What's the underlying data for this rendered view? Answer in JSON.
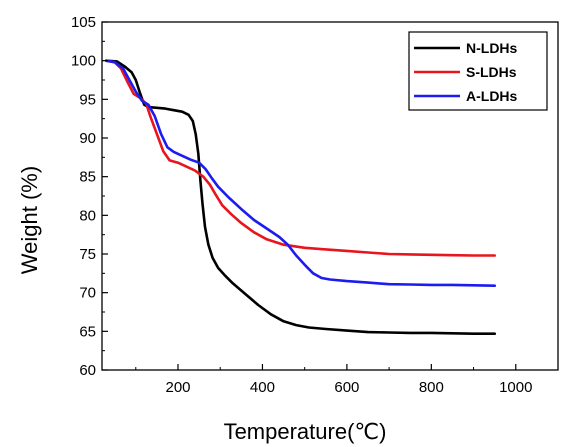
{
  "chart_data": {
    "type": "line",
    "title": "",
    "xlabel": "Temperature(℃)",
    "ylabel": "Weight (%)",
    "xlim": [
      20,
      1100
    ],
    "ylim": [
      60,
      105
    ],
    "xticks": [
      200,
      400,
      600,
      800,
      1000
    ],
    "yticks": [
      60,
      65,
      70,
      75,
      80,
      85,
      90,
      95,
      100,
      105
    ],
    "grid": false,
    "legend_position": "top-right",
    "series": [
      {
        "name": "N-LDHs",
        "color": "#000000",
        "points": [
          [
            30,
            100
          ],
          [
            55,
            99.9
          ],
          [
            75,
            99.2
          ],
          [
            90,
            98.5
          ],
          [
            100,
            97.5
          ],
          [
            110,
            95.8
          ],
          [
            120,
            94.3
          ],
          [
            130,
            94.0
          ],
          [
            150,
            93.9
          ],
          [
            170,
            93.8
          ],
          [
            190,
            93.6
          ],
          [
            210,
            93.4
          ],
          [
            225,
            93.0
          ],
          [
            235,
            92.2
          ],
          [
            242,
            90.5
          ],
          [
            248,
            88.0
          ],
          [
            253,
            84.5
          ],
          [
            258,
            81.5
          ],
          [
            264,
            78.5
          ],
          [
            272,
            76.2
          ],
          [
            282,
            74.5
          ],
          [
            295,
            73.2
          ],
          [
            310,
            72.3
          ],
          [
            330,
            71.2
          ],
          [
            360,
            69.8
          ],
          [
            390,
            68.4
          ],
          [
            420,
            67.2
          ],
          [
            450,
            66.3
          ],
          [
            480,
            65.8
          ],
          [
            510,
            65.5
          ],
          [
            550,
            65.3
          ],
          [
            600,
            65.1
          ],
          [
            650,
            64.9
          ],
          [
            700,
            64.85
          ],
          [
            750,
            64.8
          ],
          [
            800,
            64.8
          ],
          [
            850,
            64.75
          ],
          [
            900,
            64.7
          ],
          [
            950,
            64.7
          ]
        ]
      },
      {
        "name": "S-LDHs",
        "color": "#e8141e",
        "points": [
          [
            30,
            100
          ],
          [
            50,
            99.8
          ],
          [
            65,
            99
          ],
          [
            80,
            97.3
          ],
          [
            95,
            95.7
          ],
          [
            110,
            95.2
          ],
          [
            125,
            94.4
          ],
          [
            135,
            92.7
          ],
          [
            150,
            90.5
          ],
          [
            165,
            88.3
          ],
          [
            180,
            87.1
          ],
          [
            200,
            86.8
          ],
          [
            220,
            86.3
          ],
          [
            240,
            85.8
          ],
          [
            260,
            85.0
          ],
          [
            275,
            84.0
          ],
          [
            290,
            82.6
          ],
          [
            305,
            81.3
          ],
          [
            325,
            80.2
          ],
          [
            350,
            79.0
          ],
          [
            380,
            77.8
          ],
          [
            410,
            76.9
          ],
          [
            450,
            76.2
          ],
          [
            500,
            75.8
          ],
          [
            550,
            75.6
          ],
          [
            600,
            75.4
          ],
          [
            650,
            75.2
          ],
          [
            700,
            75.0
          ],
          [
            750,
            74.95
          ],
          [
            800,
            74.9
          ],
          [
            850,
            74.85
          ],
          [
            900,
            74.8
          ],
          [
            950,
            74.8
          ]
        ]
      },
      {
        "name": "A-LDHs",
        "color": "#1c1cf0",
        "points": [
          [
            30,
            100
          ],
          [
            50,
            99.8
          ],
          [
            70,
            99
          ],
          [
            85,
            97.5
          ],
          [
            100,
            96
          ],
          [
            115,
            94.8
          ],
          [
            130,
            94.3
          ],
          [
            145,
            92.8
          ],
          [
            160,
            90.5
          ],
          [
            175,
            88.8
          ],
          [
            190,
            88.2
          ],
          [
            210,
            87.7
          ],
          [
            230,
            87.2
          ],
          [
            250,
            86.8
          ],
          [
            265,
            86.0
          ],
          [
            280,
            84.8
          ],
          [
            295,
            83.7
          ],
          [
            320,
            82.3
          ],
          [
            350,
            80.8
          ],
          [
            380,
            79.4
          ],
          [
            410,
            78.3
          ],
          [
            440,
            77.2
          ],
          [
            460,
            76.2
          ],
          [
            480,
            74.8
          ],
          [
            500,
            73.6
          ],
          [
            520,
            72.5
          ],
          [
            540,
            71.9
          ],
          [
            560,
            71.7
          ],
          [
            600,
            71.5
          ],
          [
            650,
            71.3
          ],
          [
            700,
            71.1
          ],
          [
            750,
            71.05
          ],
          [
            800,
            71.0
          ],
          [
            850,
            71.0
          ],
          [
            900,
            70.95
          ],
          [
            950,
            70.9
          ]
        ]
      }
    ]
  }
}
